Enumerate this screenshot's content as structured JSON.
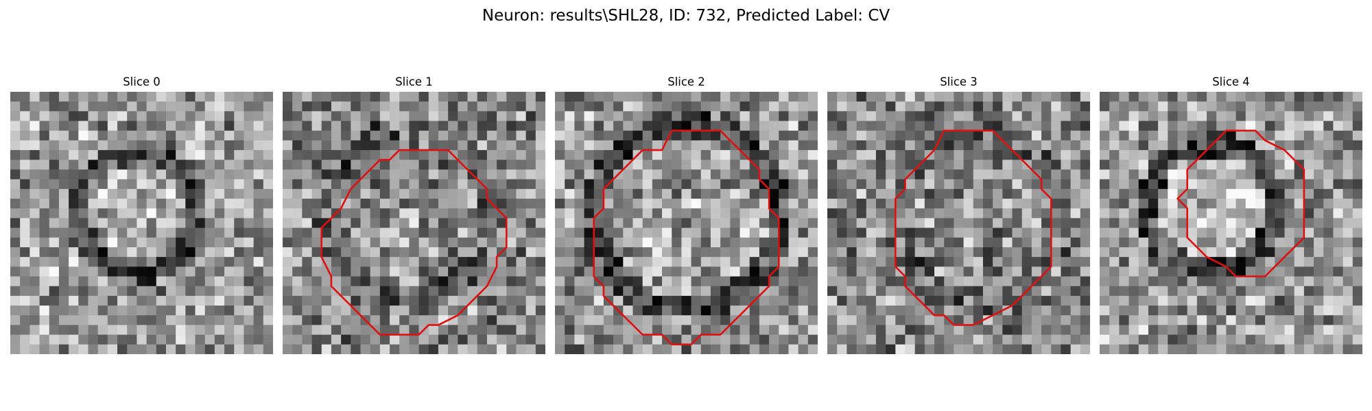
{
  "figure": {
    "suptitle": "Neuron: results\\SHL28, ID: 732, Predicted Label: CV",
    "slices": [
      {
        "title": "Slice 0",
        "has_contour": false,
        "seed": 11
      },
      {
        "title": "Slice 1",
        "has_contour": true,
        "seed": 23
      },
      {
        "title": "Slice 2",
        "has_contour": true,
        "seed": 37
      },
      {
        "title": "Slice 3",
        "has_contour": true,
        "seed": 41
      },
      {
        "title": "Slice 4",
        "has_contour": true,
        "seed": 53
      }
    ]
  },
  "colors": {
    "contour": "#e01010",
    "colormap": "gray"
  }
}
